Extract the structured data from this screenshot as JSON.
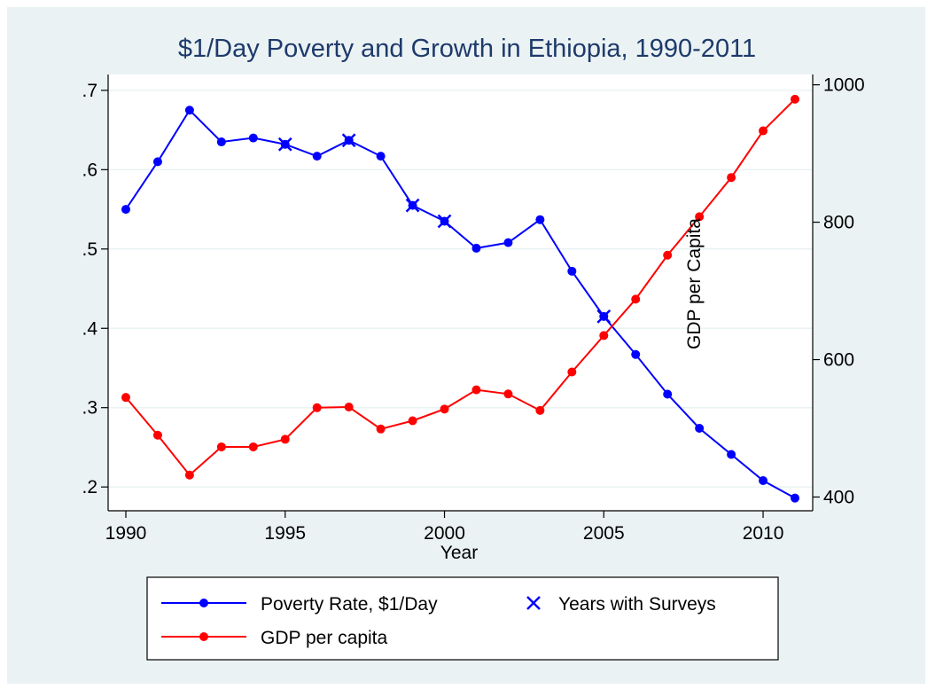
{
  "chart_data": {
    "type": "line",
    "title": "$1/Day Poverty and Growth in Ethiopia, 1990-2011",
    "xlabel": "Year",
    "ylabel_left": "",
    "ylabel_right": "GDP per Capita",
    "xlim": [
      1990,
      2011
    ],
    "ylim_left": [
      0.17,
      0.72
    ],
    "ylim_right": [
      380,
      1015
    ],
    "x_ticks": [
      1990,
      1995,
      2000,
      2005,
      2010
    ],
    "y_left_ticks": [
      {
        "value": 0.2,
        "label": ".2"
      },
      {
        "value": 0.3,
        "label": ".3"
      },
      {
        "value": 0.4,
        "label": ".4"
      },
      {
        "value": 0.5,
        "label": ".5"
      },
      {
        "value": 0.6,
        "label": ".6"
      },
      {
        "value": 0.7,
        "label": ".7"
      }
    ],
    "y_right_ticks": [
      {
        "value": 400,
        "label": "400"
      },
      {
        "value": 600,
        "label": "600"
      },
      {
        "value": 800,
        "label": "800"
      },
      {
        "value": 1000,
        "label": "1000"
      }
    ],
    "x": [
      1990,
      1991,
      1992,
      1993,
      1994,
      1995,
      1996,
      1997,
      1998,
      1999,
      2000,
      2001,
      2002,
      2003,
      2004,
      2005,
      2006,
      2007,
      2008,
      2009,
      2010,
      2011
    ],
    "series": [
      {
        "name": "Poverty Rate, $1/Day",
        "axis": "left",
        "color": "#0000ff",
        "marker": "circle",
        "values": [
          0.55,
          0.61,
          0.675,
          0.635,
          0.64,
          0.632,
          0.617,
          0.637,
          0.617,
          0.555,
          0.535,
          0.501,
          0.508,
          0.537,
          0.472,
          0.415,
          0.367,
          0.317,
          0.274,
          0.241,
          0.208,
          0.186
        ]
      },
      {
        "name": "GDP per capita",
        "axis": "right",
        "color": "#ff0000",
        "marker": "circle",
        "values": [
          545,
          490,
          432,
          473,
          473,
          484,
          530,
          531,
          499,
          511,
          528,
          556,
          550,
          526,
          582,
          635,
          688,
          752,
          808,
          865,
          933,
          979
        ]
      }
    ],
    "survey_series": {
      "name": "Years with Surveys",
      "color": "#0000ff",
      "marker": "x",
      "years": [
        1995,
        1997,
        1999,
        2000,
        2005
      ],
      "values": [
        0.632,
        0.637,
        0.555,
        0.535,
        0.415
      ]
    },
    "grid": true,
    "legend_position": "bottom",
    "colors": {
      "outer_background": "#eaf2f3",
      "plot_background": "#ffffff",
      "gridline": "#eaf2f3",
      "title": "#1e3a6b",
      "text": "#000000"
    }
  }
}
